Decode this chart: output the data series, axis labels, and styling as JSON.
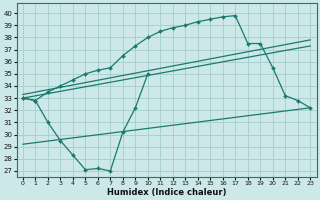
{
  "bg_color": "#cce8e8",
  "grid_color": "#aad0d0",
  "line_color": "#1a7a6e",
  "x_label": "Humidex (Indice chaleur)",
  "x_ticks": [
    0,
    1,
    2,
    3,
    4,
    5,
    6,
    7,
    8,
    9,
    10,
    11,
    12,
    13,
    14,
    15,
    16,
    17,
    18,
    19,
    20,
    21,
    22,
    23
  ],
  "y_ticks": [
    27,
    28,
    29,
    30,
    31,
    32,
    33,
    34,
    35,
    36,
    37,
    38,
    39,
    40
  ],
  "ylim": [
    26.5,
    40.8
  ],
  "xlim": [
    -0.5,
    23.5
  ],
  "upper_curve": {
    "x": [
      0,
      1,
      2,
      3,
      4,
      5,
      6,
      7,
      8,
      9,
      10,
      11,
      12,
      13,
      14,
      15,
      16,
      17,
      18,
      19,
      20,
      21,
      22,
      23
    ],
    "y": [
      33.0,
      32.8,
      33.5,
      34.0,
      34.5,
      35.0,
      35.3,
      35.5,
      36.5,
      37.3,
      38.0,
      38.5,
      38.8,
      39.0,
      39.3,
      39.5,
      39.7,
      39.8,
      37.5,
      37.5,
      35.5,
      33.2,
      32.8,
      32.2
    ]
  },
  "lower_wavy": {
    "x": [
      0,
      1,
      2,
      3,
      4,
      5,
      6,
      7,
      8,
      9,
      10,
      11,
      12,
      13,
      14,
      15,
      16,
      17,
      18,
      19,
      20,
      21,
      22,
      23
    ],
    "y": [
      33.0,
      32.8,
      31.0,
      29.5,
      28.3,
      27.1,
      27.2,
      27.0,
      30.2,
      32.2,
      35.0,
      null,
      null,
      null,
      null,
      null,
      null,
      null,
      null,
      null,
      null,
      null,
      null,
      null
    ]
  },
  "diag_line1": {
    "x": [
      0,
      23
    ],
    "y": [
      33.0,
      37.3
    ]
  },
  "diag_line2": {
    "x": [
      0,
      23
    ],
    "y": [
      33.3,
      37.8
    ]
  },
  "diag_line3": {
    "x": [
      0,
      23
    ],
    "y": [
      29.2,
      32.2
    ]
  }
}
